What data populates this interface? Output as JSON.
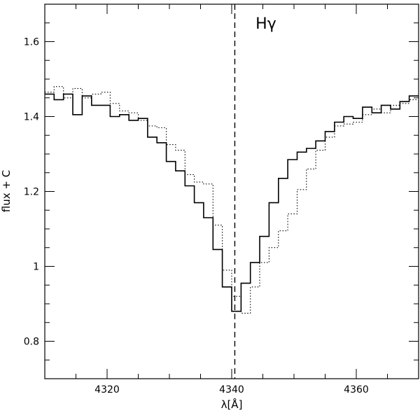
{
  "chart_data": {
    "type": "line",
    "title": "",
    "xlabel": "λ[Å]",
    "ylabel": "flux + C",
    "xlim": [
      4310,
      4370
    ],
    "ylim": [
      0.7,
      1.7
    ],
    "x_ticks": [
      4320,
      4340,
      4360
    ],
    "x_tick_labels": [
      "4320",
      "4340",
      "4360"
    ],
    "y_ticks": [
      0.8,
      1.0,
      1.2,
      1.4,
      1.6
    ],
    "y_tick_labels": [
      "0.8",
      "1",
      "1.2",
      "1.4",
      "1.6"
    ],
    "grid": false,
    "legend": null,
    "step_plot": true,
    "annotations": [
      {
        "text": "Hγ",
        "x": 4345.5,
        "y": 1.635
      }
    ],
    "vertical_lines": [
      {
        "x": 4340.5,
        "style": "dashed"
      }
    ],
    "series": [
      {
        "style": "solid",
        "x": [
          4310,
          4311.5,
          4313,
          4314.5,
          4316,
          4317.5,
          4319,
          4320.5,
          4322,
          4323.5,
          4325,
          4326.5,
          4328,
          4329.5,
          4331,
          4332.5,
          4334,
          4335.5,
          4337,
          4338.5,
          4340,
          4341.5,
          4343,
          4344.5,
          4346,
          4347.5,
          4349,
          4350.5,
          4352,
          4353.5,
          4355,
          4356.5,
          4358,
          4359.5,
          4361,
          4362.5,
          4364,
          4365.5,
          4367,
          4368.5
        ],
        "y": [
          1.46,
          1.445,
          1.46,
          1.405,
          1.455,
          1.43,
          1.43,
          1.4,
          1.405,
          1.39,
          1.395,
          1.345,
          1.33,
          1.28,
          1.255,
          1.215,
          1.17,
          1.13,
          1.045,
          0.945,
          0.88,
          0.955,
          1.01,
          1.08,
          1.17,
          1.235,
          1.285,
          1.305,
          1.315,
          1.335,
          1.36,
          1.385,
          1.4,
          1.395,
          1.425,
          1.41,
          1.43,
          1.42,
          1.44,
          1.455
        ]
      },
      {
        "style": "dotted",
        "x": [
          4310,
          4311.5,
          4313,
          4314.5,
          4316,
          4317.5,
          4319,
          4320.5,
          4322,
          4323.5,
          4325,
          4326.5,
          4328,
          4329.5,
          4331,
          4332.5,
          4334,
          4335.5,
          4337,
          4338.5,
          4340,
          4341.5,
          4343,
          4344.5,
          4346,
          4347.5,
          4349,
          4350.5,
          4352,
          4353.5,
          4355,
          4356.5,
          4358,
          4359.5,
          4361,
          4362.5,
          4364,
          4365.5,
          4367,
          4368.5
        ],
        "y": [
          1.465,
          1.48,
          1.45,
          1.475,
          1.45,
          1.46,
          1.465,
          1.435,
          1.415,
          1.41,
          1.39,
          1.375,
          1.37,
          1.325,
          1.31,
          1.245,
          1.225,
          1.22,
          1.11,
          0.99,
          0.92,
          0.875,
          0.945,
          1.01,
          1.05,
          1.095,
          1.14,
          1.205,
          1.26,
          1.31,
          1.345,
          1.375,
          1.38,
          1.385,
          1.405,
          1.42,
          1.41,
          1.43,
          1.435,
          1.445
        ]
      }
    ]
  }
}
